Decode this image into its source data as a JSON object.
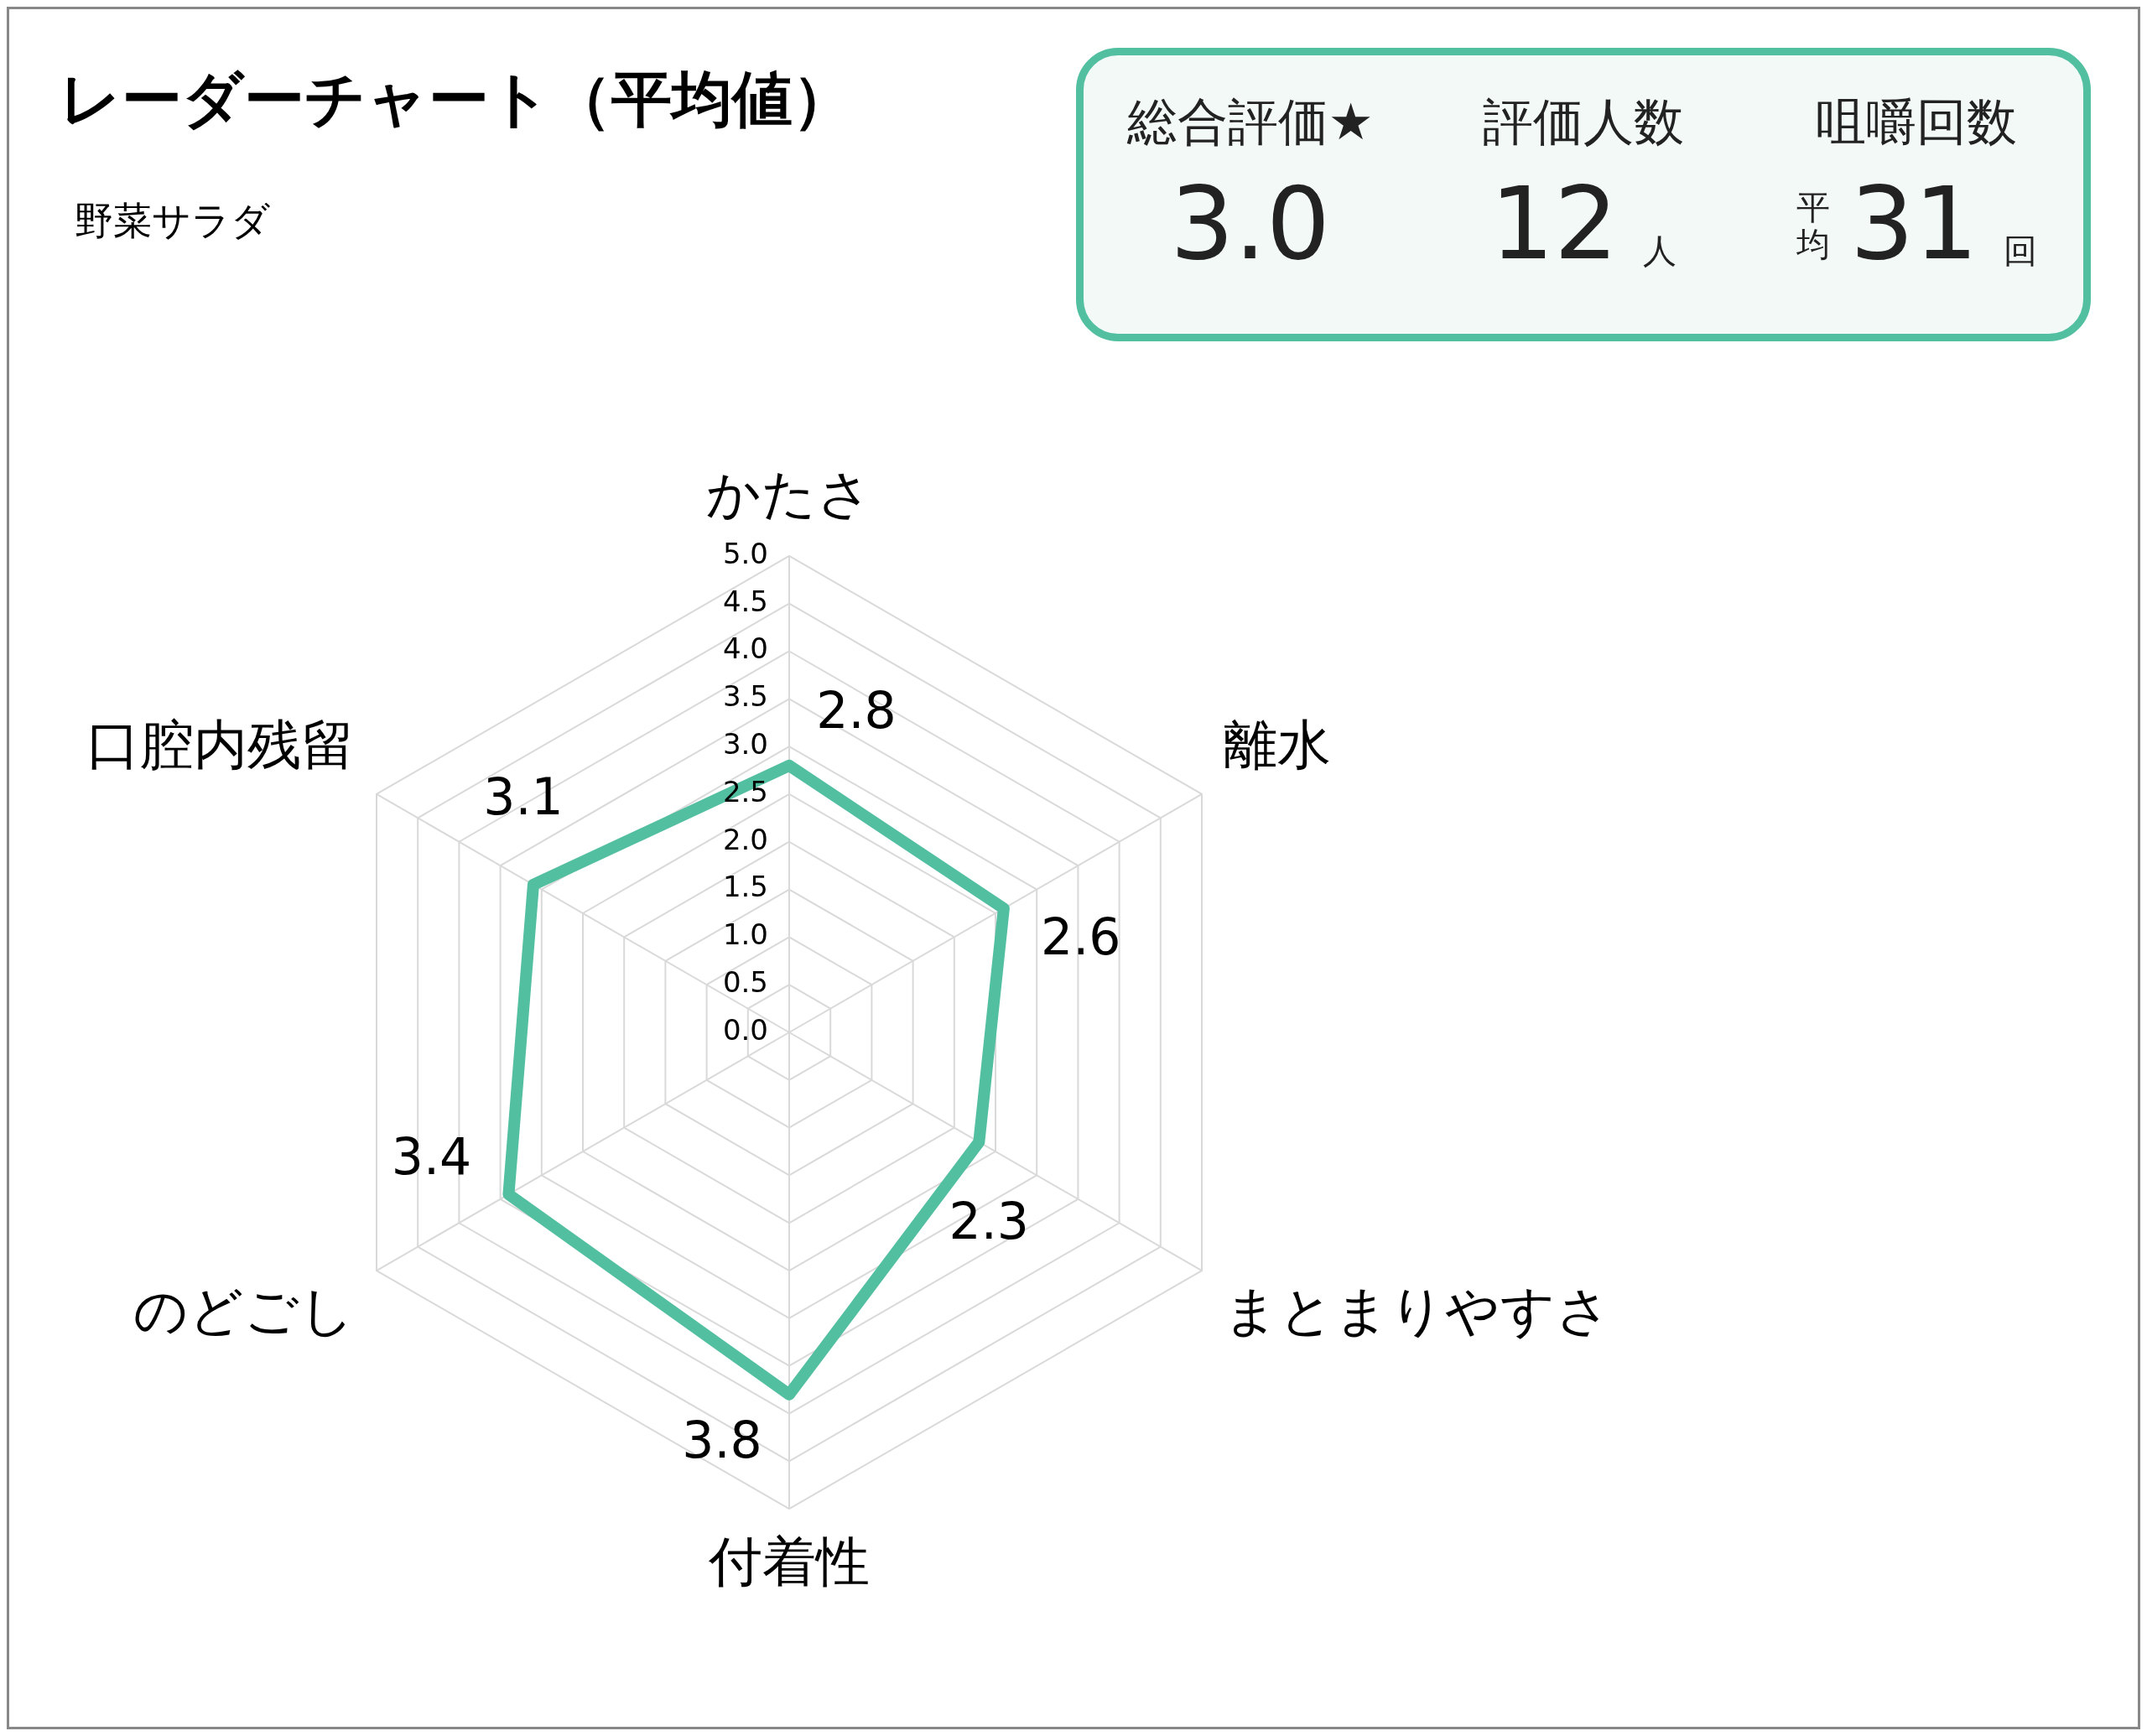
{
  "chart_data": [
    {
      "type": "radar",
      "title": "レーダーチャート（平均値）",
      "subtitle": "野菜サラダ",
      "categories": [
        "かたさ",
        "離水",
        "まとまりやすさ",
        "付着性",
        "のどごし",
        "口腔内残留"
      ],
      "series": [
        {
          "color": "#52bfa0",
          "values": [
            2.8,
            2.6,
            2.3,
            3.8,
            3.4,
            3.1
          ]
        }
      ],
      "ylim": [
        0,
        5
      ],
      "yticks": [
        {
          "value": 0,
          "label": "0.0"
        },
        {
          "value": 0.5,
          "label": "0.5"
        },
        {
          "value": 1,
          "label": "1.0"
        },
        {
          "value": 1.5,
          "label": "1.5"
        },
        {
          "value": 2,
          "label": "2.0"
        },
        {
          "value": 2.5,
          "label": "2.5"
        },
        {
          "value": 3,
          "label": "3.0"
        },
        {
          "value": 3.5,
          "label": "3.5"
        },
        {
          "value": 4,
          "label": "4.0"
        },
        {
          "value": 4.5,
          "label": "4.5"
        },
        {
          "value": 5,
          "label": "5.0"
        }
      ],
      "grid": true,
      "legend": false,
      "marker": "none",
      "data_labels": true
    },
    {
      "type": "other",
      "categories": [
        "総合評価★",
        "評価人数",
        "咀嚼回数"
      ],
      "values": [
        3.0,
        12,
        31
      ],
      "value_labels": [
        "3.0",
        "12",
        "31"
      ],
      "color": "#52bfa0",
      "annotations": [
        {
          "text": "人",
          "x": "評価人数"
        },
        {
          "text": "平均",
          "x": "咀嚼回数"
        },
        {
          "text": "回",
          "x": "咀嚼回数"
        }
      ]
    }
  ]
}
